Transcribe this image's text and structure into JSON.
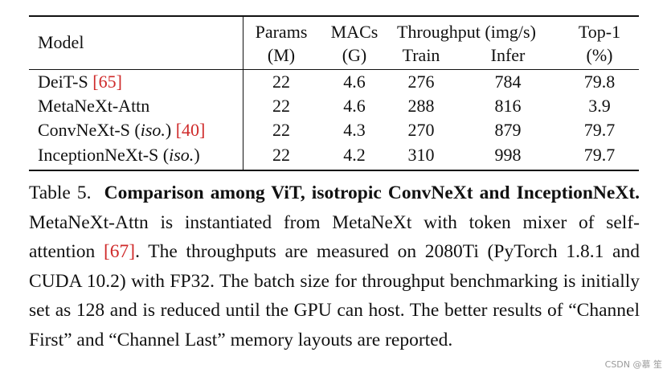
{
  "table": {
    "headers": {
      "model": "Model",
      "params": "Params",
      "params_unit": "(M)",
      "macs": "MACs",
      "macs_unit": "(G)",
      "throughput": "Throughput (img/s)",
      "train": "Train",
      "infer": "Infer",
      "top1": "Top-1",
      "top1_unit": "(%)"
    },
    "rows": [
      {
        "model": "DeiT-S ",
        "model_italic": "",
        "model_tail": "",
        "cite": "[65]",
        "params": "22",
        "macs": "4.6",
        "train": "276",
        "infer": "784",
        "top1": "79.8"
      },
      {
        "model": "MetaNeXt-Attn",
        "model_italic": "",
        "model_tail": "",
        "cite": "",
        "params": "22",
        "macs": "4.6",
        "train": "288",
        "infer": "816",
        "top1": "3.9"
      },
      {
        "model": "ConvNeXt-S (",
        "model_italic": "iso.",
        "model_tail": ") ",
        "cite": "[40]",
        "params": "22",
        "macs": "4.3",
        "train": "270",
        "infer": "879",
        "top1": "79.7"
      },
      {
        "model": "InceptionNeXt-S (",
        "model_italic": "iso.",
        "model_tail": ")",
        "cite": "",
        "params": "22",
        "macs": "4.2",
        "train": "310",
        "infer": "998",
        "top1": "79.7"
      }
    ]
  },
  "caption": {
    "label": "Table 5.",
    "title": "Comparison among ViT, isotropic ConvNeXt and InceptionNeXt.",
    "text_1": " MetaNeXt-Attn is instantiated from MetaNeXt with token mixer of self-attention ",
    "cite": "[67]",
    "text_2": ". The throughputs are measured on 2080Ti (PyTorch 1.8.1 and CUDA 10.2) with FP32. The batch size for throughput benchmarking is initially set as 128 and is reduced until the GPU can host. The better results of “Channel First” and “Channel Last” memory layouts are reported."
  },
  "watermark": "CSDN @慕  笙",
  "colors": {
    "citation": "#cf2a2a",
    "text": "#111111"
  }
}
